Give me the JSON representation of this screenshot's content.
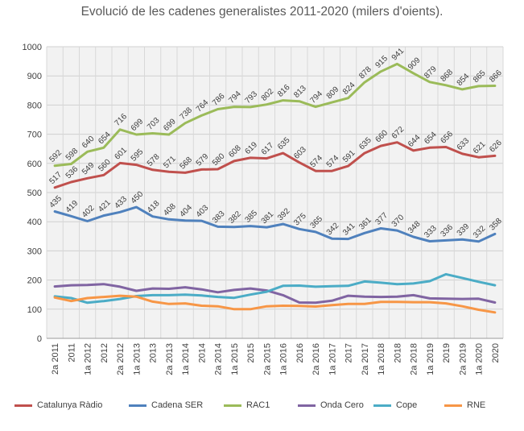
{
  "chart_data": {
    "type": "line",
    "title": "Evolució de les cadenes generalistes 2011-2020 (milers d'oients).",
    "xlabel": "",
    "ylabel": "",
    "ylim": [
      0,
      1000
    ],
    "yticks": [
      0,
      100,
      200,
      300,
      400,
      500,
      600,
      700,
      800,
      900,
      1000
    ],
    "grid": true,
    "legend_position": "bottom",
    "categories": [
      "2a 2011",
      "2011",
      "1a 2012",
      "2012",
      "2a 2012",
      "1a 2013",
      "2013",
      "2a 2013",
      "1a 2014",
      "2014",
      "2a 2014",
      "1a 2015",
      "2015",
      "2a 2015",
      "1a 2016",
      "2016",
      "2a 2016",
      "1a 2017",
      "2017",
      "2a 2017",
      "1a 2018",
      "2018",
      "2a 2018",
      "1a 2019",
      "2019",
      "2a 2019",
      "1a 2020",
      "2020"
    ],
    "series": [
      {
        "name": "Catalunya Ràdio",
        "color": "#c0504d",
        "values": [
          517,
          536,
          549,
          560,
          601,
          595,
          578,
          571,
          568,
          579,
          580,
          608,
          619,
          617,
          635,
          603,
          574,
          574,
          591,
          635,
          660,
          672,
          644,
          654,
          656,
          633,
          621,
          626
        ]
      },
      {
        "name": "Cadena SER",
        "color": "#4f81bd",
        "values": [
          435,
          419,
          402,
          421,
          433,
          450,
          418,
          408,
          404,
          403,
          383,
          382,
          385,
          381,
          392,
          375,
          365,
          342,
          341,
          361,
          377,
          370,
          348,
          333,
          336,
          339,
          332,
          358
        ]
      },
      {
        "name": "RAC1",
        "color": "#9bbb59",
        "values": [
          592,
          598,
          640,
          654,
          716,
          699,
          703,
          699,
          738,
          764,
          786,
          794,
          793,
          802,
          816,
          813,
          794,
          809,
          824,
          878,
          915,
          941,
          909,
          879,
          868,
          854,
          865,
          866
        ]
      },
      {
        "name": "Onda Cero",
        "color": "#8064a2",
        "values": [
          178,
          182,
          183,
          186,
          177,
          163,
          171,
          170,
          175,
          168,
          158,
          166,
          171,
          164,
          148,
          123,
          122,
          129,
          146,
          143,
          142,
          143,
          148,
          137,
          136,
          135,
          136,
          123
        ]
      },
      {
        "name": "Cope",
        "color": "#4bacc6",
        "values": [
          144,
          138,
          122,
          128,
          135,
          145,
          148,
          148,
          150,
          147,
          142,
          139,
          150,
          160,
          180,
          181,
          177,
          179,
          180,
          195,
          191,
          186,
          188,
          196,
          220,
          207,
          194,
          182
        ]
      },
      {
        "name": "RNE",
        "color": "#f79646",
        "values": [
          140,
          128,
          138,
          142,
          146,
          143,
          126,
          118,
          120,
          112,
          110,
          100,
          100,
          110,
          112,
          111,
          109,
          114,
          118,
          118,
          125,
          125,
          124,
          124,
          120,
          110,
          98,
          89
        ]
      }
    ],
    "data_labels": [
      {
        "series": 0,
        "values": [
          517,
          536,
          549,
          560,
          601,
          595,
          578,
          571,
          568,
          579,
          580,
          608,
          619,
          617,
          635,
          603,
          574,
          574,
          591,
          635,
          660,
          672,
          644,
          654,
          656,
          633,
          621,
          626
        ]
      },
      {
        "series": 1,
        "values": [
          435,
          419,
          402,
          421,
          433,
          450,
          418,
          408,
          404,
          403,
          383,
          382,
          385,
          381,
          392,
          375,
          365,
          342,
          341,
          361,
          377,
          370,
          348,
          333,
          336,
          339,
          332,
          358
        ]
      },
      {
        "series": 2,
        "values": [
          592,
          598,
          640,
          654,
          716,
          699,
          703,
          699,
          738,
          764,
          786,
          794,
          793,
          802,
          816,
          813,
          794,
          809,
          824,
          878,
          915,
          941,
          909,
          879,
          868,
          854,
          865,
          866
        ]
      }
    ]
  }
}
